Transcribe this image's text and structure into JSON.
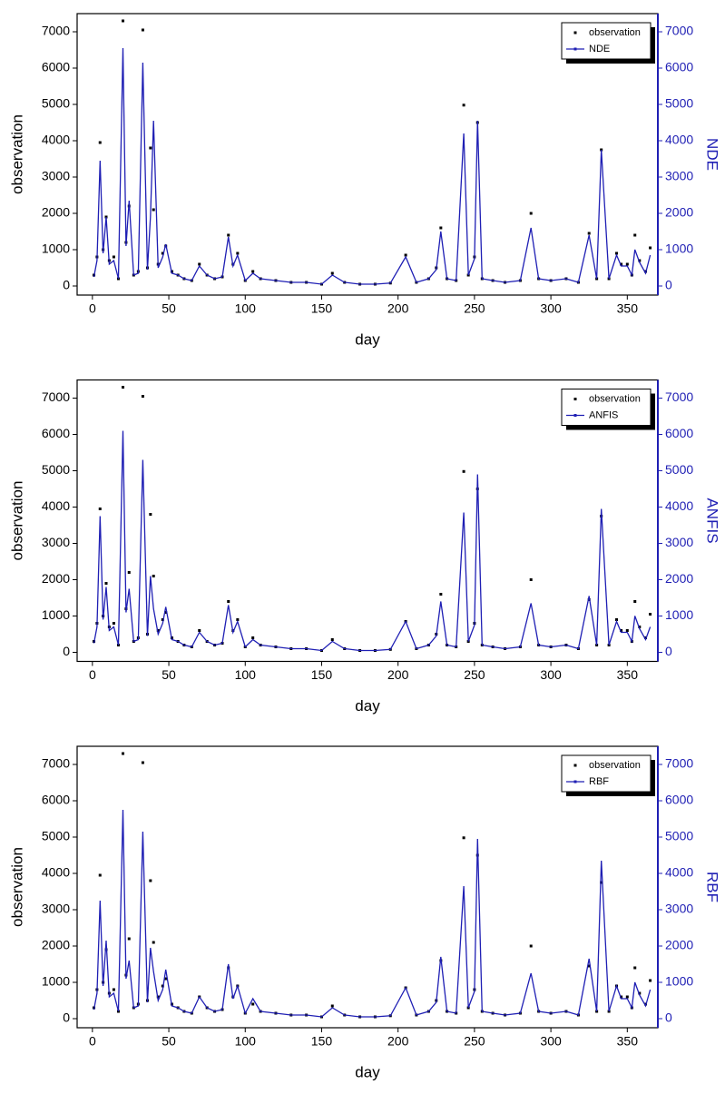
{
  "chart_data": [
    {
      "type": "line",
      "xlabel": "day",
      "ylabel": "observation",
      "y2label": "NDE",
      "legend": "upper right",
      "xlim": [
        -10,
        370
      ],
      "xticks": [
        0,
        50,
        100,
        150,
        200,
        250,
        300,
        350
      ],
      "ylim": [
        -250,
        7500
      ],
      "yticks": [
        0,
        1000,
        2000,
        3000,
        4000,
        5000,
        6000,
        7000
      ],
      "y2lim": [
        -250,
        7500
      ],
      "y2ticks": [
        0,
        1000,
        2000,
        3000,
        4000,
        5000,
        6000,
        7000
      ],
      "x": [
        1,
        3,
        5,
        7,
        9,
        11,
        14,
        17,
        20,
        22,
        24,
        27,
        30,
        33,
        36,
        38,
        40,
        43,
        46,
        48,
        52,
        56,
        60,
        65,
        70,
        75,
        80,
        85,
        89,
        92,
        95,
        100,
        105,
        110,
        120,
        130,
        140,
        150,
        157,
        165,
        175,
        185,
        195,
        205,
        212,
        220,
        225,
        228,
        232,
        238,
        243,
        246,
        250,
        252,
        255,
        262,
        270,
        280,
        287,
        292,
        300,
        310,
        318,
        325,
        330,
        333,
        338,
        343,
        346,
        350,
        353,
        355,
        358,
        362,
        365
      ],
      "series": [
        {
          "name": "observation",
          "color": "#000000",
          "mode": "markers",
          "values": [
            300,
            800,
            3950,
            1000,
            1900,
            700,
            800,
            200,
            7300,
            1200,
            2200,
            300,
            400,
            7050,
            500,
            3800,
            2100,
            600,
            900,
            1100,
            400,
            300,
            200,
            150,
            600,
            300,
            200,
            250,
            1400,
            600,
            900,
            150,
            400,
            200,
            150,
            100,
            100,
            50,
            350,
            100,
            50,
            50,
            80,
            850,
            100,
            200,
            500,
            1600,
            200,
            150,
            4980,
            300,
            800,
            4500,
            200,
            150,
            100,
            150,
            2000,
            200,
            150,
            200,
            100,
            1450,
            200,
            3750,
            200,
            900,
            600,
            600,
            300,
            1400,
            700,
            400,
            1050
          ]
        },
        {
          "name": "NDE",
          "color": "#1f1fb4",
          "mode": "lines",
          "axis": "y2",
          "values": [
            250,
            700,
            3450,
            900,
            1900,
            600,
            700,
            200,
            6550,
            1100,
            2350,
            300,
            350,
            6150,
            450,
            1900,
            4550,
            500,
            800,
            1150,
            350,
            300,
            200,
            150,
            550,
            300,
            200,
            250,
            1350,
            550,
            850,
            150,
            350,
            200,
            150,
            100,
            100,
            50,
            300,
            100,
            50,
            50,
            80,
            800,
            100,
            200,
            450,
            1500,
            200,
            150,
            4200,
            300,
            750,
            4550,
            200,
            150,
            100,
            150,
            1600,
            200,
            150,
            200,
            100,
            1400,
            200,
            3750,
            200,
            850,
            550,
            550,
            300,
            1000,
            650,
            350,
            850
          ]
        }
      ]
    },
    {
      "type": "line",
      "xlabel": "day",
      "ylabel": "observation",
      "y2label": "ANFIS",
      "legend": "upper right",
      "xlim": [
        -10,
        370
      ],
      "xticks": [
        0,
        50,
        100,
        150,
        200,
        250,
        300,
        350
      ],
      "ylim": [
        -250,
        7500
      ],
      "yticks": [
        0,
        1000,
        2000,
        3000,
        4000,
        5000,
        6000,
        7000
      ],
      "y2lim": [
        -250,
        7500
      ],
      "y2ticks": [
        0,
        1000,
        2000,
        3000,
        4000,
        5000,
        6000,
        7000
      ],
      "x": [
        1,
        3,
        5,
        7,
        9,
        11,
        14,
        17,
        20,
        22,
        24,
        27,
        30,
        33,
        36,
        38,
        40,
        43,
        46,
        48,
        52,
        56,
        60,
        65,
        70,
        75,
        80,
        85,
        89,
        92,
        95,
        100,
        105,
        110,
        120,
        130,
        140,
        150,
        157,
        165,
        175,
        185,
        195,
        205,
        212,
        220,
        225,
        228,
        232,
        238,
        243,
        246,
        250,
        252,
        255,
        262,
        270,
        280,
        287,
        292,
        300,
        310,
        318,
        325,
        330,
        333,
        338,
        343,
        346,
        350,
        353,
        355,
        358,
        362,
        365
      ],
      "series": [
        {
          "name": "observation",
          "color": "#000000",
          "mode": "markers",
          "values": [
            300,
            800,
            3950,
            1000,
            1900,
            700,
            800,
            200,
            7300,
            1200,
            2200,
            300,
            400,
            7050,
            500,
            3800,
            2100,
            600,
            900,
            1100,
            400,
            300,
            200,
            150,
            600,
            300,
            200,
            250,
            1400,
            600,
            900,
            150,
            400,
            200,
            150,
            100,
            100,
            50,
            350,
            100,
            50,
            50,
            80,
            850,
            100,
            200,
            500,
            1600,
            200,
            150,
            4980,
            300,
            800,
            4500,
            200,
            150,
            100,
            150,
            2000,
            200,
            150,
            200,
            100,
            1450,
            200,
            3750,
            200,
            900,
            600,
            600,
            300,
            1400,
            700,
            400,
            1050
          ]
        },
        {
          "name": "ANFIS",
          "color": "#1f1fb4",
          "mode": "lines",
          "axis": "y2",
          "values": [
            250,
            700,
            3750,
            900,
            1800,
            600,
            700,
            200,
            6100,
            1100,
            1750,
            300,
            350,
            5300,
            450,
            2100,
            1200,
            500,
            800,
            1250,
            350,
            300,
            200,
            150,
            550,
            300,
            200,
            250,
            1300,
            550,
            850,
            150,
            350,
            200,
            150,
            100,
            100,
            50,
            300,
            100,
            50,
            50,
            80,
            850,
            100,
            200,
            450,
            1400,
            200,
            150,
            3850,
            300,
            750,
            4900,
            200,
            150,
            100,
            150,
            1350,
            200,
            150,
            200,
            100,
            1550,
            200,
            3950,
            200,
            850,
            550,
            550,
            300,
            1000,
            650,
            350,
            700
          ]
        }
      ]
    },
    {
      "type": "line",
      "xlabel": "day",
      "ylabel": "observation",
      "y2label": "RBF",
      "legend": "upper right",
      "xlim": [
        -10,
        370
      ],
      "xticks": [
        0,
        50,
        100,
        150,
        200,
        250,
        300,
        350
      ],
      "ylim": [
        -250,
        7500
      ],
      "yticks": [
        0,
        1000,
        2000,
        3000,
        4000,
        5000,
        6000,
        7000
      ],
      "y2lim": [
        -250,
        7500
      ],
      "y2ticks": [
        0,
        1000,
        2000,
        3000,
        4000,
        5000,
        6000,
        7000
      ],
      "x": [
        1,
        3,
        5,
        7,
        9,
        11,
        14,
        17,
        20,
        22,
        24,
        27,
        30,
        33,
        36,
        38,
        40,
        43,
        46,
        48,
        52,
        56,
        60,
        65,
        70,
        75,
        80,
        85,
        89,
        92,
        95,
        100,
        105,
        110,
        120,
        130,
        140,
        150,
        157,
        165,
        175,
        185,
        195,
        205,
        212,
        220,
        225,
        228,
        232,
        238,
        243,
        246,
        250,
        252,
        255,
        262,
        270,
        280,
        287,
        292,
        300,
        310,
        318,
        325,
        330,
        333,
        338,
        343,
        346,
        350,
        353,
        355,
        358,
        362,
        365
      ],
      "series": [
        {
          "name": "observation",
          "color": "#000000",
          "mode": "markers",
          "values": [
            300,
            800,
            3950,
            1000,
            1900,
            700,
            800,
            200,
            7300,
            1200,
            2200,
            300,
            400,
            7050,
            500,
            3800,
            2100,
            600,
            900,
            1100,
            400,
            300,
            200,
            150,
            600,
            300,
            200,
            250,
            1400,
            600,
            900,
            150,
            400,
            200,
            150,
            100,
            100,
            50,
            350,
            100,
            50,
            50,
            80,
            850,
            100,
            200,
            500,
            1600,
            200,
            150,
            4980,
            300,
            800,
            4500,
            200,
            150,
            100,
            150,
            2000,
            200,
            150,
            200,
            100,
            1450,
            200,
            3750,
            200,
            900,
            600,
            600,
            300,
            1400,
            700,
            400,
            1050
          ]
        },
        {
          "name": "RBF",
          "color": "#1f1fb4",
          "mode": "lines",
          "axis": "y2",
          "values": [
            250,
            700,
            3250,
            900,
            2150,
            600,
            700,
            200,
            5750,
            1100,
            1600,
            300,
            350,
            5150,
            450,
            1950,
            1300,
            500,
            800,
            1350,
            350,
            300,
            200,
            150,
            600,
            300,
            200,
            250,
            1500,
            550,
            900,
            150,
            550,
            200,
            150,
            100,
            100,
            50,
            300,
            100,
            50,
            50,
            80,
            850,
            100,
            200,
            450,
            1700,
            200,
            150,
            3650,
            300,
            750,
            4950,
            200,
            150,
            100,
            150,
            1250,
            200,
            150,
            200,
            100,
            1650,
            200,
            4350,
            200,
            900,
            550,
            550,
            300,
            1000,
            650,
            350,
            800
          ]
        }
      ]
    }
  ]
}
